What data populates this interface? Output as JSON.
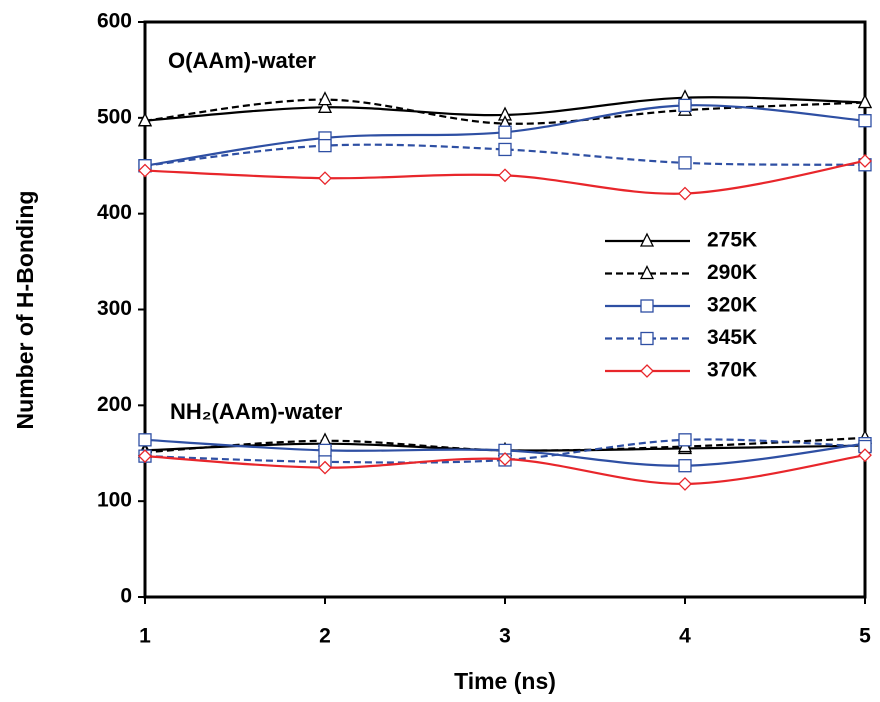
{
  "chart_data": {
    "type": "line",
    "xlabel": "Time (ns)",
    "ylabel": "Number of H-Bonding",
    "x": [
      1,
      2,
      3,
      4,
      5
    ],
    "xlim": [
      1,
      5
    ],
    "xticks": [
      1,
      2,
      3,
      4,
      5
    ],
    "ylim": [
      0,
      600
    ],
    "yticks": [
      0,
      100,
      200,
      300,
      400,
      500,
      600
    ],
    "grid": false,
    "legend": "right",
    "smooth": true,
    "annotations": [
      "O(AAm)-water",
      "NH₂(AAm)-water"
    ],
    "series": [
      {
        "name": "275K",
        "color": "#000000",
        "dash": false,
        "marker": "triangle",
        "values": [
          497,
          511,
          503,
          521,
          516
        ],
        "values_nh2": [
          153,
          160,
          153,
          155,
          158
        ]
      },
      {
        "name": "290K",
        "color": "#000000",
        "dash": true,
        "marker": "triangle",
        "values": [
          497,
          519,
          494,
          508,
          516
        ],
        "values_nh2": [
          151,
          163,
          153,
          157,
          166
        ]
      },
      {
        "name": "320K",
        "color": "#2e4fa3",
        "dash": false,
        "marker": "square",
        "values": [
          450,
          479,
          485,
          513,
          497
        ],
        "values_nh2": [
          164,
          153,
          153,
          137,
          160
        ]
      },
      {
        "name": "345K",
        "color": "#2e4fa3",
        "dash": true,
        "marker": "square",
        "values": [
          450,
          471,
          467,
          453,
          451
        ],
        "values_nh2": [
          147,
          141,
          143,
          164,
          157
        ]
      },
      {
        "name": "370K",
        "color": "#e8262b",
        "dash": false,
        "marker": "diamond",
        "values": [
          445,
          437,
          440,
          421,
          455
        ],
        "values_nh2": [
          147,
          135,
          144,
          118,
          148
        ]
      }
    ]
  }
}
